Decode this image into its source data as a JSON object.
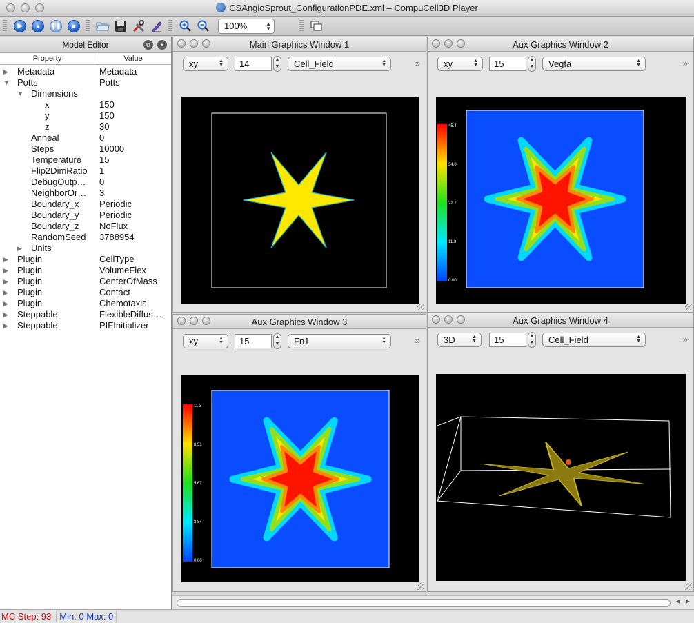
{
  "window": {
    "title": "CSAngioSprout_ConfigurationPDE.xml – CompuCell3D Player"
  },
  "toolbar": {
    "buttons": [
      "run-icon",
      "step-icon",
      "pause-icon",
      "stop-icon",
      "open-folder-icon",
      "save-icon",
      "tools-icon",
      "edit-icon",
      "zoom-in-icon",
      "zoom-out-icon",
      "windows-icon"
    ],
    "zoom": "100%"
  },
  "model_editor": {
    "title": "Model Editor",
    "col_property": "Property",
    "col_value": "Value",
    "rows": [
      {
        "p": "Metadata",
        "v": "Metadata",
        "lvl": 0,
        "arrow": "right"
      },
      {
        "p": "Potts",
        "v": "Potts",
        "lvl": 0,
        "arrow": "down"
      },
      {
        "p": "Dimensions",
        "v": "",
        "lvl": 1,
        "arrow": "down"
      },
      {
        "p": "x",
        "v": "150",
        "lvl": 2,
        "arrow": ""
      },
      {
        "p": "y",
        "v": "150",
        "lvl": 2,
        "arrow": ""
      },
      {
        "p": "z",
        "v": "30",
        "lvl": 2,
        "arrow": ""
      },
      {
        "p": "Anneal",
        "v": "0",
        "lvl": 1,
        "arrow": ""
      },
      {
        "p": "Steps",
        "v": "10000",
        "lvl": 1,
        "arrow": ""
      },
      {
        "p": "Temperature",
        "v": "15",
        "lvl": 1,
        "arrow": ""
      },
      {
        "p": "Flip2DimRatio",
        "v": "1",
        "lvl": 1,
        "arrow": ""
      },
      {
        "p": "DebugOutp…",
        "v": "0",
        "lvl": 1,
        "arrow": ""
      },
      {
        "p": "NeighborOr…",
        "v": "3",
        "lvl": 1,
        "arrow": ""
      },
      {
        "p": "Boundary_x",
        "v": "Periodic",
        "lvl": 1,
        "arrow": ""
      },
      {
        "p": "Boundary_y",
        "v": "Periodic",
        "lvl": 1,
        "arrow": ""
      },
      {
        "p": "Boundary_z",
        "v": "NoFlux",
        "lvl": 1,
        "arrow": ""
      },
      {
        "p": "RandomSeed",
        "v": "3788954",
        "lvl": 1,
        "arrow": ""
      },
      {
        "p": "Units",
        "v": "",
        "lvl": 1,
        "arrow": "right"
      },
      {
        "p": "Plugin",
        "v": "CellType",
        "lvl": 0,
        "arrow": "right"
      },
      {
        "p": "Plugin",
        "v": "VolumeFlex",
        "lvl": 0,
        "arrow": "right"
      },
      {
        "p": "Plugin",
        "v": "CenterOfMass",
        "lvl": 0,
        "arrow": "right"
      },
      {
        "p": "Plugin",
        "v": "Contact",
        "lvl": 0,
        "arrow": "right"
      },
      {
        "p": "Plugin",
        "v": "Chemotaxis",
        "lvl": 0,
        "arrow": "right"
      },
      {
        "p": "Steppable",
        "v": "FlexibleDiffus…",
        "lvl": 0,
        "arrow": "right"
      },
      {
        "p": "Steppable",
        "v": "PIFInitializer",
        "lvl": 0,
        "arrow": "right"
      }
    ]
  },
  "windows": [
    {
      "title": "Main Graphics Window 1",
      "proj": "xy",
      "slice": "14",
      "field": "Cell_Field"
    },
    {
      "title": "Aux Graphics Window 2",
      "proj": "xy",
      "slice": "15",
      "field": "Vegfa",
      "colorbar": [
        "45.4",
        "34.0",
        "22.7",
        "11.3",
        "0.00"
      ]
    },
    {
      "title": "Aux Graphics Window 3",
      "proj": "xy",
      "slice": "15",
      "field": "Fn1",
      "colorbar": [
        "11.3",
        "8.51",
        "5.67",
        "2.84",
        "0.00"
      ]
    },
    {
      "title": "Aux Graphics Window 4",
      "proj": "3D",
      "slice": "15",
      "field": "Cell_Field"
    }
  ],
  "status": {
    "mc_step": "MC Step: 93",
    "minmax": "Min: 0 Max: 0"
  }
}
